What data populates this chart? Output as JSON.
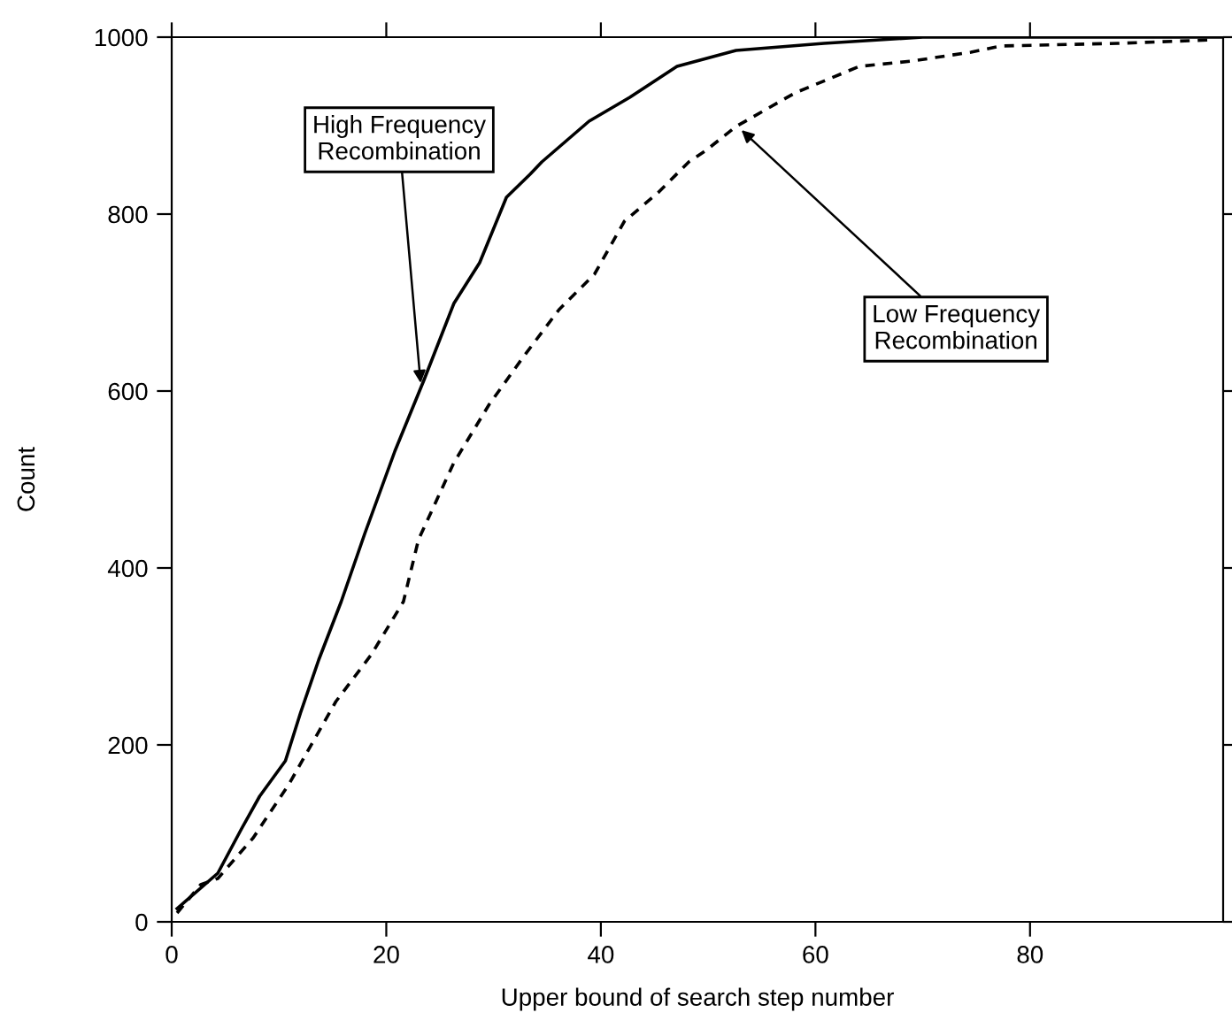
{
  "chart_data": {
    "type": "line",
    "xlabel": "Upper bound of search step number",
    "ylabel": "Count",
    "xlim": [
      0,
      98
    ],
    "ylim": [
      0,
      1000
    ],
    "xticks": [
      0,
      20,
      40,
      60,
      80
    ],
    "yticks": [
      0,
      200,
      400,
      600,
      800,
      1000
    ],
    "grid": false,
    "legend": false,
    "marker": "none",
    "series": [
      {
        "color": "#000000",
        "line_style": "solid",
        "x": [
          0.5,
          4.3,
          6.5,
          8.2,
          10.6,
          12,
          13.7,
          15.8,
          18,
          20.8,
          23.5,
          26.3,
          28.7,
          31.2,
          33.4,
          34.5,
          38.9,
          42.7,
          47.1,
          52.6,
          60.8,
          70,
          98
        ],
        "values": [
          15,
          55,
          105,
          142,
          182,
          236,
          296,
          362,
          439,
          532,
          612,
          699,
          745,
          819,
          845,
          859,
          905,
          932,
          967,
          985,
          993,
          1000,
          1000
        ]
      },
      {
        "color": "#000000",
        "line_style": "dashed",
        "x": [
          0.5,
          2.7,
          4.3,
          7.6,
          10.9,
          13.1,
          15.3,
          18.6,
          21.6,
          23,
          26.3,
          29.6,
          32.8,
          36.1,
          39.4,
          42.2,
          45.4,
          48.2,
          49.8,
          52.6,
          58.1,
          64.1,
          69,
          74.5,
          77.3,
          88.2,
          97
        ],
        "values": [
          10,
          42,
          49,
          95,
          155,
          202,
          249,
          302,
          362,
          432,
          519,
          585,
          639,
          692,
          732,
          792,
          825,
          859,
          872,
          899,
          937,
          967,
          973,
          983,
          990,
          993,
          997
        ]
      }
    ],
    "annotations": [
      {
        "text": "High Frequency\nRecombination",
        "x": 23.2,
        "y": 609
      },
      {
        "text": "Low Frequency\nRecombination",
        "x": 53.1,
        "y": 895
      }
    ]
  }
}
